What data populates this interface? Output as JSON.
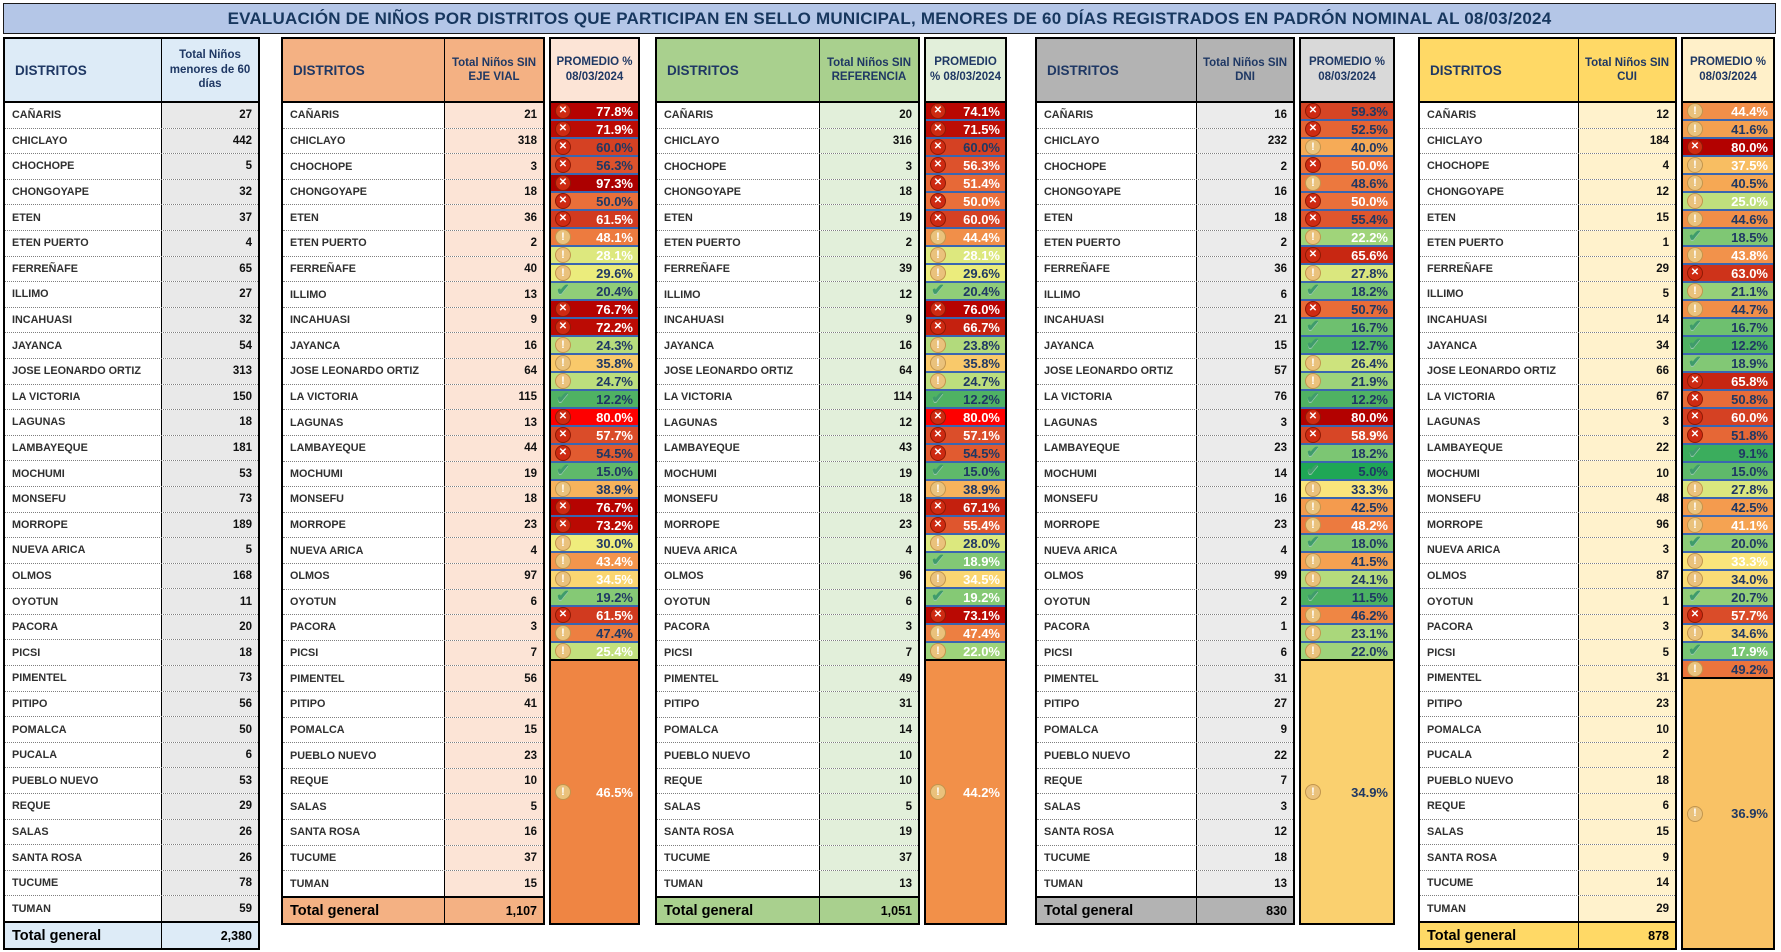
{
  "title": "EVALUACIÓN DE NIÑOS POR DISTRITOS QUE PARTICIPAN EN SELLO MUNICIPAL, MENORES DE 60 DÍAS REGISTRADOS EN PADRÓN NOMINAL AL 08/03/2024",
  "title_bg": "#B4C6E7",
  "icon_colors": {
    "x_circle": "#CE2A12",
    "warn_circle": "#EAC27C",
    "ok_check": "#3F9C6B"
  },
  "pct_separator_color": "#3A66B0",
  "tables": [
    {
      "id": "menores-60-dias",
      "accent": "#DDEBF7",
      "count_bg": "#E9E9E9",
      "header": {
        "district": "DISTRITOS",
        "count": "Total Niños menores de 60 días"
      },
      "rows": [
        [
          "CAÑARIS",
          27
        ],
        [
          "CHICLAYO",
          442
        ],
        [
          "CHOCHOPE",
          5
        ],
        [
          "CHONGOYAPE",
          32
        ],
        [
          "ETEN",
          37
        ],
        [
          "ETEN PUERTO",
          4
        ],
        [
          "FERREÑAFE",
          65
        ],
        [
          "ILLIMO",
          27
        ],
        [
          "INCAHUASI",
          32
        ],
        [
          "JAYANCA",
          54
        ],
        [
          "JOSE LEONARDO ORTIZ",
          313
        ],
        [
          "LA VICTORIA",
          150
        ],
        [
          "LAGUNAS",
          18
        ],
        [
          "LAMBAYEQUE",
          181
        ],
        [
          "MOCHUMI",
          53
        ],
        [
          "MONSEFU",
          73
        ],
        [
          "MORROPE",
          189
        ],
        [
          "NUEVA ARICA",
          5
        ],
        [
          "OLMOS",
          168
        ],
        [
          "OYOTUN",
          11
        ],
        [
          "PACORA",
          20
        ],
        [
          "PICSI",
          18
        ],
        [
          "PIMENTEL",
          73
        ],
        [
          "PITIPO",
          56
        ],
        [
          "POMALCA",
          50
        ],
        [
          "PUCALA",
          6
        ],
        [
          "PUEBLO NUEVO",
          53
        ],
        [
          "REQUE",
          29
        ],
        [
          "SALAS",
          26
        ],
        [
          "SANTA ROSA",
          26
        ],
        [
          "TUCUME",
          78
        ],
        [
          "TUMAN",
          59
        ]
      ],
      "total": {
        "label": "Total general",
        "count": "2,380"
      }
    },
    {
      "id": "sin-eje-vial",
      "accent": "#F4B183",
      "count_bg": "#FCE4D6",
      "pct_head_bg": "#FCE4D6",
      "header": {
        "district": "DISTRITOS",
        "count": "Total Niños SIN EJE VIAL",
        "pct": "PROMEDIO % 08/03/2024"
      },
      "rows": [
        [
          "CAÑARIS",
          21,
          77.8,
          "x",
          "w"
        ],
        [
          "CHICLAYO",
          318,
          71.9,
          "x",
          "w"
        ],
        [
          "CHOCHOPE",
          3,
          60.0,
          "x",
          "n"
        ],
        [
          "CHONGOYAPE",
          18,
          56.3,
          "x",
          "n"
        ],
        [
          "ETEN",
          36,
          97.3,
          "x",
          "w"
        ],
        [
          "ETEN PUERTO",
          2,
          50.0,
          "x",
          "n"
        ],
        [
          "FERREÑAFE",
          40,
          61.5,
          "x",
          "w"
        ],
        [
          "ILLIMO",
          13,
          48.1,
          "warn",
          "w"
        ],
        [
          "INCAHUASI",
          9,
          28.1,
          "warn",
          "w"
        ],
        [
          "JAYANCA",
          16,
          29.6,
          "warn",
          "n"
        ],
        [
          "JOSE LEONARDO ORTIZ",
          64,
          20.4,
          "ok",
          "n"
        ],
        [
          "LA VICTORIA",
          115,
          76.7,
          "x",
          "w"
        ],
        [
          "LAGUNAS",
          13,
          72.2,
          "x",
          "w"
        ],
        [
          "LAMBAYEQUE",
          44,
          24.3,
          "warn",
          "n"
        ],
        [
          "MOCHUMI",
          19,
          35.8,
          "warn",
          "n"
        ],
        [
          "MONSEFU",
          18,
          24.7,
          "warn",
          "n"
        ],
        [
          "MORROPE",
          23,
          12.2,
          "ok",
          "n"
        ],
        [
          "NUEVA ARICA",
          4,
          80.0,
          "x",
          "w",
          "#FE0000"
        ],
        [
          "OLMOS",
          97,
          57.7,
          "x",
          "w"
        ],
        [
          "OYOTUN",
          6,
          54.5,
          "x",
          "n"
        ],
        [
          "PACORA",
          3,
          15.0,
          "ok",
          "n"
        ],
        [
          "PICSI",
          7,
          38.9,
          "warn",
          "n"
        ],
        [
          "PIMENTEL",
          56,
          76.7,
          "x",
          "w"
        ],
        [
          "PITIPO",
          41,
          73.2,
          "x",
          "w"
        ],
        [
          "POMALCA",
          15,
          30.0,
          "warn",
          "n"
        ],
        [
          "PUEBLO NUEVO",
          23,
          43.4,
          "warn",
          "w"
        ],
        [
          "REQUE",
          10,
          34.5,
          "warn",
          "w"
        ],
        [
          "SALAS",
          5,
          19.2,
          "ok",
          "n"
        ],
        [
          "SANTA ROSA",
          16,
          61.5,
          "x",
          "w"
        ],
        [
          "TUCUME",
          37,
          47.4,
          "warn",
          "n"
        ],
        [
          "TUMAN",
          15,
          25.4,
          "warn",
          "w"
        ]
      ],
      "total": {
        "label": "Total general",
        "count": "1,107",
        "pct": 46.5,
        "icon": "warn",
        "fg": "w"
      }
    },
    {
      "id": "sin-referencia",
      "accent": "#A9D08E",
      "count_bg": "#E2EFDA",
      "pct_head_bg": "#E2EFDA",
      "header": {
        "district": "DISTRITOS",
        "count": "Total Niños SIN REFERENCIA",
        "pct": "PROMEDIO % 08/03/2024"
      },
      "rows": [
        [
          "CAÑARIS",
          20,
          74.1,
          "x",
          "w"
        ],
        [
          "CHICLAYO",
          316,
          71.5,
          "x",
          "w"
        ],
        [
          "CHOCHOPE",
          3,
          60.0,
          "x",
          "n"
        ],
        [
          "CHONGOYAPE",
          18,
          56.3,
          "x",
          "w"
        ],
        [
          "ETEN",
          19,
          51.4,
          "x",
          "w"
        ],
        [
          "ETEN PUERTO",
          2,
          50.0,
          "x",
          "w"
        ],
        [
          "FERREÑAFE",
          39,
          60.0,
          "x",
          "w"
        ],
        [
          "ILLIMO",
          12,
          44.4,
          "warn",
          "w"
        ],
        [
          "INCAHUASI",
          9,
          28.1,
          "warn",
          "w"
        ],
        [
          "JAYANCA",
          16,
          29.6,
          "warn",
          "n"
        ],
        [
          "JOSE LEONARDO ORTIZ",
          64,
          20.4,
          "ok",
          "n"
        ],
        [
          "LA VICTORIA",
          114,
          76.0,
          "x",
          "w"
        ],
        [
          "LAGUNAS",
          12,
          66.7,
          "x",
          "w"
        ],
        [
          "LAMBAYEQUE",
          43,
          23.8,
          "warn",
          "n"
        ],
        [
          "MOCHUMI",
          19,
          35.8,
          "warn",
          "n"
        ],
        [
          "MONSEFU",
          18,
          24.7,
          "warn",
          "n"
        ],
        [
          "MORROPE",
          23,
          12.2,
          "ok",
          "n"
        ],
        [
          "NUEVA ARICA",
          4,
          80.0,
          "x",
          "w",
          "#FE0000"
        ],
        [
          "OLMOS",
          96,
          57.1,
          "x",
          "w"
        ],
        [
          "OYOTUN",
          6,
          54.5,
          "x",
          "n"
        ],
        [
          "PACORA",
          3,
          15.0,
          "ok",
          "n"
        ],
        [
          "PICSI",
          7,
          38.9,
          "warn",
          "n"
        ],
        [
          "PIMENTEL",
          49,
          67.1,
          "x",
          "w"
        ],
        [
          "PITIPO",
          31,
          55.4,
          "x",
          "w"
        ],
        [
          "POMALCA",
          14,
          28.0,
          "warn",
          "n"
        ],
        [
          "PUEBLO NUEVO",
          10,
          18.9,
          "ok",
          "w"
        ],
        [
          "REQUE",
          10,
          34.5,
          "warn",
          "w"
        ],
        [
          "SALAS",
          5,
          19.2,
          "ok",
          "w"
        ],
        [
          "SANTA ROSA",
          19,
          73.1,
          "x",
          "w"
        ],
        [
          "TUCUME",
          37,
          47.4,
          "warn",
          "w"
        ],
        [
          "TUMAN",
          13,
          22.0,
          "warn",
          "w"
        ]
      ],
      "total": {
        "label": "Total general",
        "count": "1,051",
        "pct": 44.2,
        "icon": "warn",
        "fg": "w"
      }
    },
    {
      "id": "sin-dni",
      "accent": "#B3B3B3",
      "count_bg": "#EBEBEB",
      "pct_head_bg": "#D9D9D9",
      "header": {
        "district": "DISTRITOS",
        "count": "Total Niños SIN DNI",
        "pct": "PROMEDIO % 08/03/2024"
      },
      "rows": [
        [
          "CAÑARIS",
          16,
          59.3,
          "x",
          "n"
        ],
        [
          "CHICLAYO",
          232,
          52.5,
          "x",
          "n"
        ],
        [
          "CHOCHOPE",
          2,
          40.0,
          "warn",
          "n"
        ],
        [
          "CHONGOYAPE",
          16,
          50.0,
          "x",
          "w"
        ],
        [
          "ETEN",
          18,
          48.6,
          "warn",
          "n"
        ],
        [
          "ETEN PUERTO",
          2,
          50.0,
          "x",
          "w"
        ],
        [
          "FERREÑAFE",
          36,
          55.4,
          "x",
          "n"
        ],
        [
          "ILLIMO",
          6,
          22.2,
          "warn",
          "w"
        ],
        [
          "INCAHUASI",
          21,
          65.6,
          "x",
          "w"
        ],
        [
          "JAYANCA",
          15,
          27.8,
          "warn",
          "n"
        ],
        [
          "JOSE LEONARDO ORTIZ",
          57,
          18.2,
          "ok",
          "n"
        ],
        [
          "LA VICTORIA",
          76,
          50.7,
          "x",
          "n"
        ],
        [
          "LAGUNAS",
          3,
          16.7,
          "ok",
          "n"
        ],
        [
          "LAMBAYEQUE",
          23,
          12.7,
          "ok",
          "n"
        ],
        [
          "MOCHUMI",
          14,
          26.4,
          "warn",
          "n"
        ],
        [
          "MONSEFU",
          16,
          21.9,
          "warn",
          "n"
        ],
        [
          "MORROPE",
          23,
          12.2,
          "ok",
          "n"
        ],
        [
          "NUEVA ARICA",
          4,
          80.0,
          "x",
          "w"
        ],
        [
          "OLMOS",
          99,
          58.9,
          "x",
          "w"
        ],
        [
          "OYOTUN",
          2,
          18.2,
          "ok",
          "n"
        ],
        [
          "PACORA",
          1,
          5.0,
          "ok",
          "n"
        ],
        [
          "PICSI",
          6,
          33.3,
          "warn",
          "n"
        ],
        [
          "PIMENTEL",
          31,
          42.5,
          "warn",
          "n"
        ],
        [
          "PITIPO",
          27,
          48.2,
          "warn",
          "w"
        ],
        [
          "POMALCA",
          9,
          18.0,
          "ok",
          "n"
        ],
        [
          "PUEBLO NUEVO",
          22,
          41.5,
          "warn",
          "n"
        ],
        [
          "REQUE",
          7,
          24.1,
          "warn",
          "n"
        ],
        [
          "SALAS",
          3,
          11.5,
          "ok",
          "n"
        ],
        [
          "SANTA ROSA",
          12,
          46.2,
          "warn",
          "n"
        ],
        [
          "TUCUME",
          18,
          23.1,
          "warn",
          "n"
        ],
        [
          "TUMAN",
          13,
          22.0,
          "warn",
          "n"
        ]
      ],
      "total": {
        "label": "Total general",
        "count": "830",
        "pct": 34.9,
        "icon": "warn",
        "fg": "n"
      }
    },
    {
      "id": "sin-cui",
      "accent": "#FFD966",
      "count_bg": "#FFF2CC",
      "pct_head_bg": "#FFF0C9",
      "header": {
        "district": "DISTRITOS",
        "count": "Total Niños SIN CUI",
        "pct": "PROMEDIO % 08/03/2024"
      },
      "rows": [
        [
          "CAÑARIS",
          12,
          44.4,
          "warn",
          "w"
        ],
        [
          "CHICLAYO",
          184,
          41.6,
          "warn",
          "n"
        ],
        [
          "CHOCHOPE",
          4,
          80.0,
          "x",
          "w"
        ],
        [
          "CHONGOYAPE",
          12,
          37.5,
          "warn",
          "w"
        ],
        [
          "ETEN",
          15,
          40.5,
          "warn",
          "n"
        ],
        [
          "ETEN PUERTO",
          1,
          25.0,
          "warn",
          "w"
        ],
        [
          "FERREÑAFE",
          29,
          44.6,
          "warn",
          "n"
        ],
        [
          "ILLIMO",
          5,
          18.5,
          "ok",
          "n"
        ],
        [
          "INCAHUASI",
          14,
          43.8,
          "warn",
          "w"
        ],
        [
          "JAYANCA",
          34,
          63.0,
          "x",
          "w"
        ],
        [
          "JOSE LEONARDO ORTIZ",
          66,
          21.1,
          "warn",
          "n"
        ],
        [
          "LA VICTORIA",
          67,
          44.7,
          "warn",
          "n"
        ],
        [
          "LAGUNAS",
          3,
          16.7,
          "ok",
          "n"
        ],
        [
          "LAMBAYEQUE",
          22,
          12.2,
          "ok",
          "n"
        ],
        [
          "MOCHUMI",
          10,
          18.9,
          "ok",
          "n"
        ],
        [
          "MONSEFU",
          48,
          65.8,
          "x",
          "w"
        ],
        [
          "MORROPE",
          96,
          50.8,
          "x",
          "n"
        ],
        [
          "NUEVA ARICA",
          3,
          60.0,
          "x",
          "w"
        ],
        [
          "OLMOS",
          87,
          51.8,
          "x",
          "n"
        ],
        [
          "OYOTUN",
          1,
          9.1,
          "ok",
          "n"
        ],
        [
          "PACORA",
          3,
          15.0,
          "ok",
          "n"
        ],
        [
          "PICSI",
          5,
          27.8,
          "warn",
          "n"
        ],
        [
          "PIMENTEL",
          31,
          42.5,
          "warn",
          "n"
        ],
        [
          "PITIPO",
          23,
          41.1,
          "warn",
          "w"
        ],
        [
          "POMALCA",
          10,
          20.0,
          "ok",
          "n"
        ],
        [
          "PUCALA",
          2,
          33.3,
          "warn",
          "w"
        ],
        [
          "PUEBLO NUEVO",
          18,
          34.0,
          "warn",
          "n"
        ],
        [
          "REQUE",
          6,
          20.7,
          "ok",
          "n"
        ],
        [
          "SALAS",
          15,
          57.7,
          "x",
          "w"
        ],
        [
          "SANTA ROSA",
          9,
          34.6,
          "warn",
          "n"
        ],
        [
          "TUCUME",
          14,
          17.9,
          "ok",
          "w"
        ],
        [
          "TUMAN",
          29,
          49.2,
          "warn",
          "n"
        ]
      ],
      "total": {
        "label": "Total general",
        "count": "878",
        "pct": 36.9,
        "icon": "warn",
        "fg": "n"
      }
    }
  ]
}
